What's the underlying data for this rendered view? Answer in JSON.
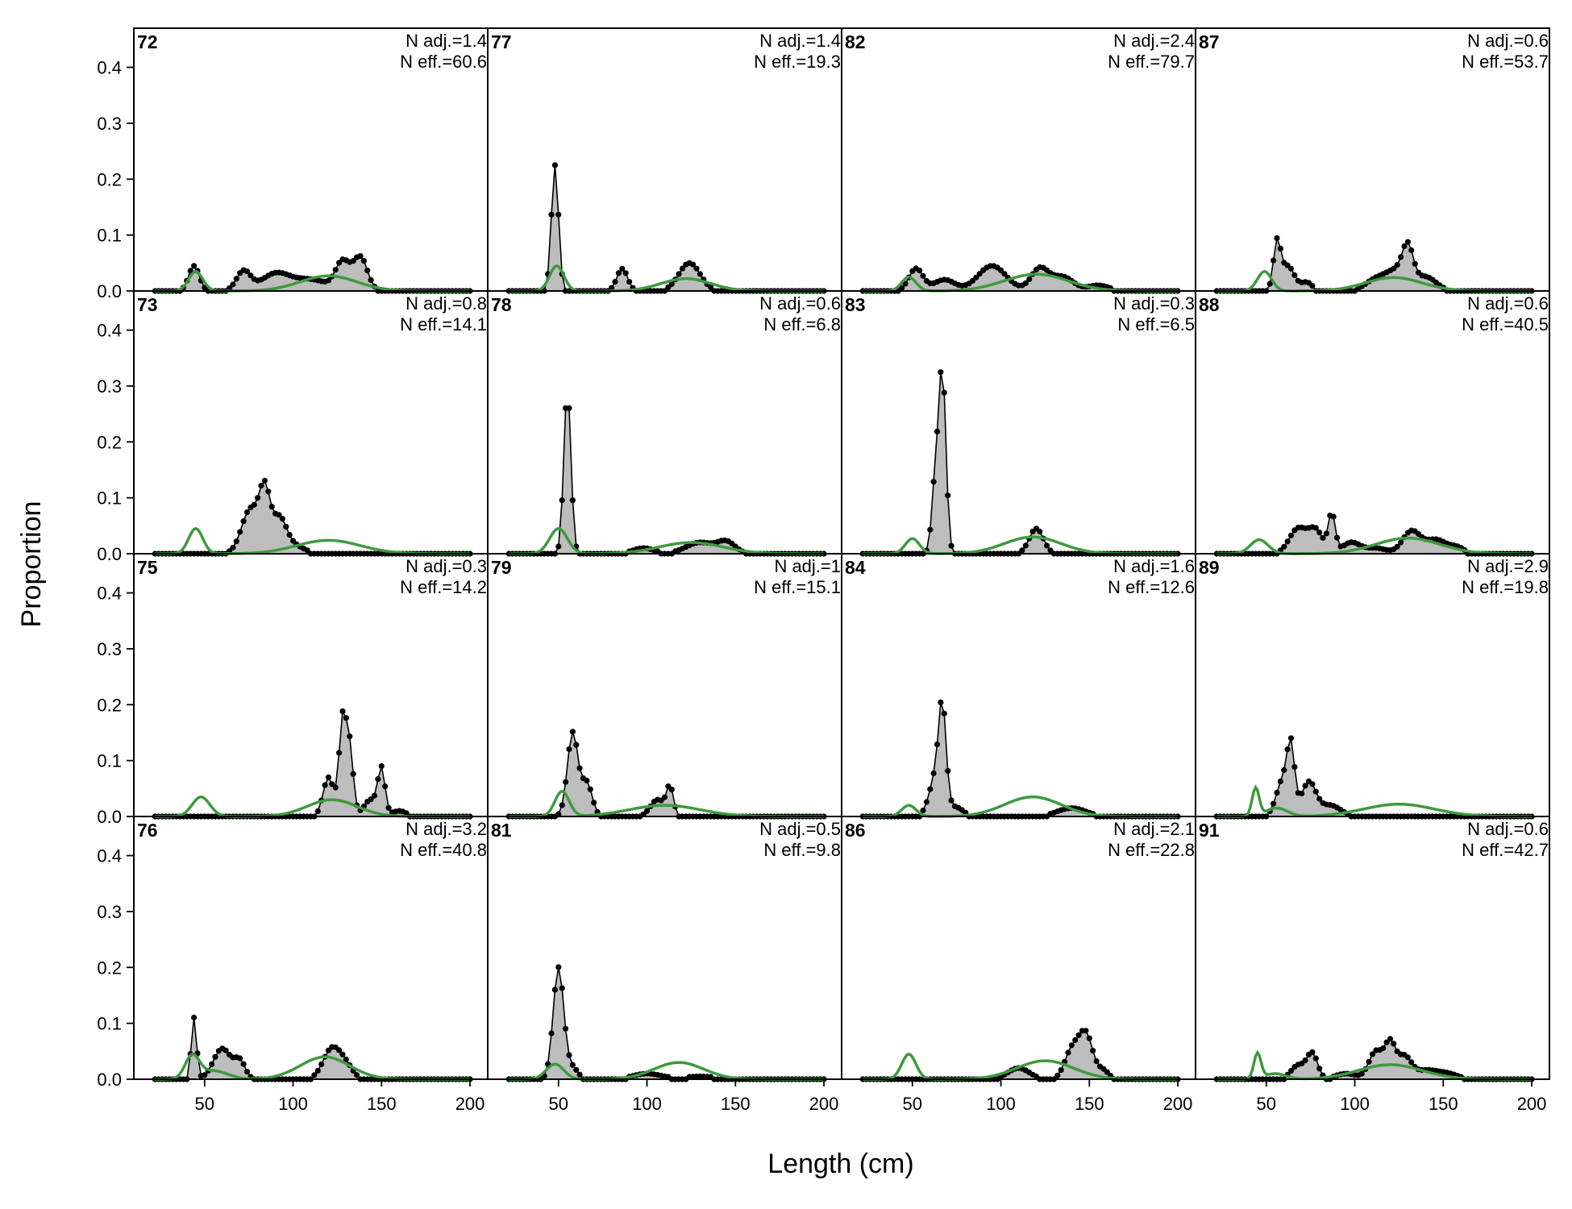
{
  "figure": {
    "xlabel": "Length (cm)",
    "ylabel": "Proportion"
  },
  "chart_data": {
    "type": "area",
    "xlabel": "Length (cm)",
    "ylabel": "Proportion",
    "xlim": [
      10,
      210
    ],
    "ylim": [
      0,
      0.47
    ],
    "xticks": [
      50,
      100,
      150,
      200
    ],
    "yticks": [
      0.0,
      0.1,
      0.2,
      0.3,
      0.4
    ],
    "bins": {
      "start": 22,
      "end": 200,
      "step": 2
    },
    "grid": false,
    "legend": "none",
    "colors": {
      "observed_fill": "#bdbdbd",
      "observed_line": "#000000",
      "expected_line": "#3d9a3d",
      "zero_line": "#bdbdbd"
    },
    "panels": [
      {
        "label": "72",
        "n_adj": "N adj.=1.4",
        "n_eff": "N eff.=60.6",
        "observed_peaks": [
          [
            44,
            0.045,
            3
          ],
          [
            72,
            0.035,
            4
          ],
          [
            90,
            0.03,
            8
          ],
          [
            110,
            0.02,
            10
          ],
          [
            128,
            0.05,
            4
          ],
          [
            138,
            0.06,
            4
          ]
        ],
        "expected_peaks": [
          [
            45,
            0.035,
            4
          ],
          [
            120,
            0.027,
            16
          ]
        ]
      },
      {
        "label": "77",
        "n_adj": "N adj.=1.4",
        "n_eff": "N eff.=19.3",
        "observed_peaks": [
          [
            48,
            0.225,
            2
          ],
          [
            86,
            0.04,
            3
          ],
          [
            124,
            0.05,
            6
          ]
        ],
        "expected_peaks": [
          [
            49,
            0.045,
            4
          ],
          [
            122,
            0.022,
            14
          ]
        ]
      },
      {
        "label": "82",
        "n_adj": "N adj.=2.4",
        "n_eff": "N eff.=79.7",
        "observed_peaks": [
          [
            52,
            0.04,
            4
          ],
          [
            68,
            0.02,
            6
          ],
          [
            95,
            0.045,
            8
          ],
          [
            122,
            0.04,
            5
          ],
          [
            135,
            0.025,
            6
          ],
          [
            155,
            0.01,
            6
          ]
        ],
        "expected_peaks": [
          [
            48,
            0.025,
            4
          ],
          [
            120,
            0.03,
            18
          ]
        ]
      },
      {
        "label": "87",
        "n_adj": "N adj.=0.6",
        "n_eff": "N eff.=53.7",
        "observed_peaks": [
          [
            56,
            0.08,
            2
          ],
          [
            62,
            0.045,
            4
          ],
          [
            73,
            0.015,
            3
          ],
          [
            112,
            0.02,
            6
          ],
          [
            124,
            0.035,
            6
          ],
          [
            130,
            0.06,
            3
          ],
          [
            140,
            0.025,
            6
          ]
        ],
        "expected_peaks": [
          [
            49,
            0.035,
            4
          ],
          [
            122,
            0.024,
            16
          ]
        ]
      },
      {
        "label": "73",
        "n_adj": "N adj.=0.8",
        "n_eff": "N eff.=14.1",
        "observed_peaks": [
          [
            76,
            0.08,
            5
          ],
          [
            84,
            0.1,
            3
          ],
          [
            92,
            0.06,
            4
          ],
          [
            100,
            0.015,
            6
          ]
        ],
        "expected_peaks": [
          [
            45,
            0.045,
            4
          ],
          [
            120,
            0.024,
            18
          ]
        ]
      },
      {
        "label": "78",
        "n_adj": "N adj.=0.6",
        "n_eff": "N eff.=6.8",
        "observed_peaks": [
          [
            55,
            0.295,
            2
          ],
          [
            98,
            0.01,
            6
          ],
          [
            130,
            0.02,
            8
          ],
          [
            145,
            0.02,
            5
          ]
        ],
        "expected_peaks": [
          [
            50,
            0.045,
            5
          ],
          [
            125,
            0.02,
            18
          ]
        ]
      },
      {
        "label": "83",
        "n_adj": "N adj.=0.3",
        "n_eff": "N eff.=6.5",
        "observed_peaks": [
          [
            63,
            0.13,
            2
          ],
          [
            67,
            0.32,
            2
          ],
          [
            120,
            0.045,
            4
          ]
        ],
        "expected_peaks": [
          [
            50,
            0.027,
            4
          ],
          [
            118,
            0.03,
            16
          ]
        ]
      },
      {
        "label": "88",
        "n_adj": "N adj.=0.6",
        "n_eff": "N eff.=40.5",
        "observed_peaks": [
          [
            68,
            0.045,
            5
          ],
          [
            78,
            0.04,
            4
          ],
          [
            87,
            0.07,
            2
          ],
          [
            98,
            0.02,
            5
          ],
          [
            112,
            0.01,
            6
          ],
          [
            132,
            0.04,
            5
          ],
          [
            146,
            0.025,
            6
          ],
          [
            158,
            0.01,
            4
          ]
        ],
        "expected_peaks": [
          [
            46,
            0.025,
            5
          ],
          [
            130,
            0.028,
            18
          ]
        ]
      },
      {
        "label": "75",
        "n_adj": "N adj.=0.3",
        "n_eff": "N eff.=14.2",
        "observed_peaks": [
          [
            120,
            0.07,
            3
          ],
          [
            128,
            0.17,
            2
          ],
          [
            132,
            0.12,
            2
          ],
          [
            144,
            0.03,
            4
          ],
          [
            150,
            0.08,
            2
          ],
          [
            160,
            0.01,
            4
          ]
        ],
        "expected_peaks": [
          [
            48,
            0.035,
            5
          ],
          [
            122,
            0.03,
            14
          ]
        ]
      },
      {
        "label": "79",
        "n_adj": "N adj.=1",
        "n_eff": "N eff.=15.1",
        "observed_peaks": [
          [
            58,
            0.15,
            3
          ],
          [
            66,
            0.06,
            3
          ],
          [
            106,
            0.03,
            4
          ],
          [
            113,
            0.05,
            2
          ]
        ],
        "expected_peaks": [
          [
            52,
            0.045,
            4
          ],
          [
            110,
            0.02,
            20
          ]
        ]
      },
      {
        "label": "84",
        "n_adj": "N adj.=1.6",
        "n_eff": "N eff.=12.6",
        "observed_peaks": [
          [
            64,
            0.08,
            4
          ],
          [
            67,
            0.15,
            2
          ],
          [
            75,
            0.015,
            4
          ],
          [
            140,
            0.015,
            8
          ]
        ],
        "expected_peaks": [
          [
            48,
            0.02,
            4
          ],
          [
            118,
            0.035,
            16
          ]
        ]
      },
      {
        "label": "89",
        "n_adj": "N adj.=2.9",
        "n_eff": "N eff.=19.8",
        "observed_peaks": [
          [
            60,
            0.07,
            4
          ],
          [
            64,
            0.095,
            2
          ],
          [
            74,
            0.06,
            4
          ],
          [
            86,
            0.02,
            6
          ]
        ],
        "expected_peaks": [
          [
            44,
            0.05,
            2
          ],
          [
            56,
            0.015,
            6
          ],
          [
            125,
            0.022,
            20
          ]
        ]
      },
      {
        "label": "76",
        "n_adj": "N adj.=3.2",
        "n_eff": "N eff.=40.8",
        "observed_peaks": [
          [
            44,
            0.11,
            1.5
          ],
          [
            60,
            0.055,
            5
          ],
          [
            70,
            0.03,
            3
          ],
          [
            122,
            0.055,
            5
          ],
          [
            130,
            0.02,
            4
          ]
        ],
        "expected_peaks": [
          [
            43,
            0.04,
            4
          ],
          [
            55,
            0.015,
            8
          ],
          [
            118,
            0.04,
            14
          ]
        ]
      },
      {
        "label": "81",
        "n_adj": "N adj.=0.5",
        "n_eff": "N eff.=9.8",
        "observed_peaks": [
          [
            50,
            0.2,
            3
          ],
          [
            58,
            0.02,
            3
          ],
          [
            100,
            0.01,
            8
          ],
          [
            130,
            0.005,
            10
          ]
        ],
        "expected_peaks": [
          [
            48,
            0.027,
            5
          ],
          [
            118,
            0.03,
            14
          ]
        ]
      },
      {
        "label": "86",
        "n_adj": "N adj.=2.1",
        "n_eff": "N eff.=22.8",
        "observed_peaks": [
          [
            110,
            0.02,
            6
          ],
          [
            140,
            0.05,
            4
          ],
          [
            148,
            0.08,
            4
          ],
          [
            158,
            0.015,
            3
          ]
        ],
        "expected_peaks": [
          [
            48,
            0.045,
            4
          ],
          [
            125,
            0.033,
            16
          ]
        ]
      },
      {
        "label": "91",
        "n_adj": "N adj.=0.6",
        "n_eff": "N eff.=42.7",
        "observed_peaks": [
          [
            68,
            0.025,
            4
          ],
          [
            76,
            0.045,
            3
          ],
          [
            95,
            0.01,
            6
          ],
          [
            112,
            0.05,
            4
          ],
          [
            120,
            0.06,
            3
          ],
          [
            128,
            0.04,
            4
          ],
          [
            140,
            0.015,
            6
          ],
          [
            152,
            0.01,
            6
          ]
        ],
        "expected_peaks": [
          [
            45,
            0.045,
            2
          ],
          [
            55,
            0.01,
            6
          ],
          [
            120,
            0.026,
            18
          ]
        ]
      }
    ]
  }
}
